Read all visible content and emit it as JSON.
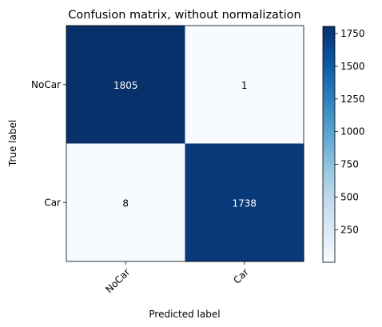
{
  "chart_data": {
    "type": "heatmap",
    "title": "Confusion matrix, without normalization",
    "xlabel": "Predicted label",
    "ylabel": "True label",
    "x_categories": [
      "NoCar",
      "Car"
    ],
    "y_categories": [
      "NoCar",
      "Car"
    ],
    "values": [
      [
        1805,
        1
      ],
      [
        8,
        1738
      ]
    ],
    "colormap": "Blues",
    "colorbar": {
      "range": [
        1,
        1805
      ],
      "ticks": [
        250,
        500,
        750,
        1000,
        1250,
        1500,
        1750
      ]
    }
  }
}
